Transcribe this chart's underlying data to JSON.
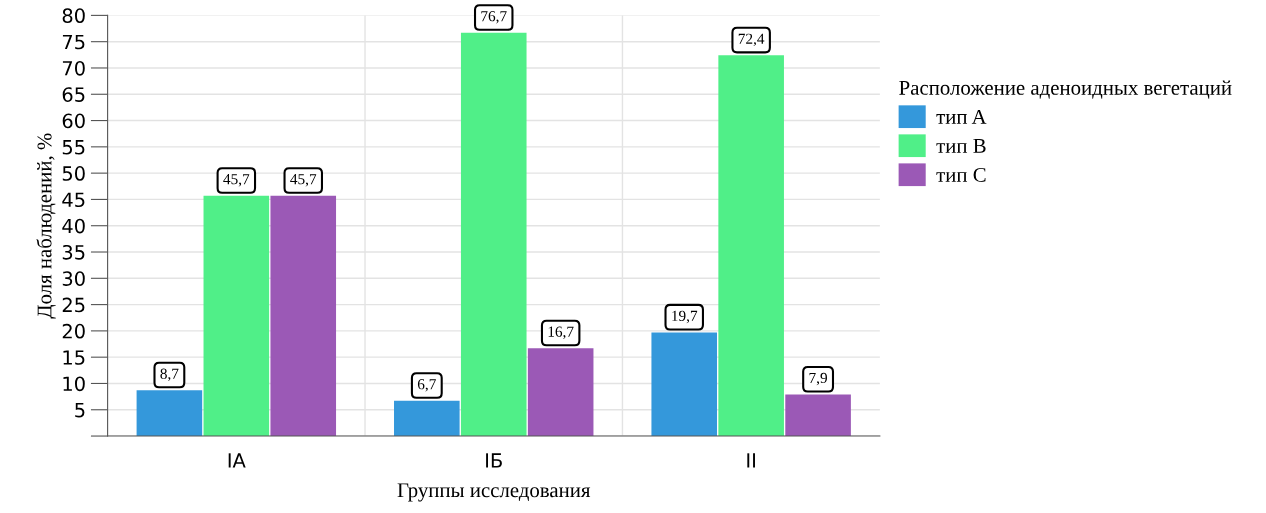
{
  "chart_data": {
    "type": "bar",
    "xlabel": "Группы исследования",
    "ylabel": "Доля наблюдений, %",
    "legend_title": "Расположение аденоидных вегетаций",
    "categories": [
      "IA",
      "IБ",
      "II"
    ],
    "series": [
      {
        "name": "тип A",
        "color": "#3498db",
        "values": [
          8.7,
          6.7,
          19.7
        ],
        "value_labels": [
          "8,7",
          "6,7",
          "19,7"
        ]
      },
      {
        "name": "тип B",
        "color": "#50ef88",
        "values": [
          45.7,
          76.7,
          72.4
        ],
        "value_labels": [
          "45,7",
          "76,7",
          "72,4"
        ]
      },
      {
        "name": "тип C",
        "color": "#9b59b6",
        "values": [
          45.7,
          16.7,
          7.9
        ],
        "value_labels": [
          "45,7",
          "16,7",
          "7,9"
        ]
      }
    ],
    "ylim": [
      0,
      80
    ],
    "yticks": [
      {
        "value": 0,
        "label": null
      },
      5,
      10,
      15,
      20,
      25,
      30,
      35,
      40,
      45,
      50,
      55,
      60,
      65,
      70,
      75,
      80
    ],
    "grid": true,
    "legend": "right"
  }
}
